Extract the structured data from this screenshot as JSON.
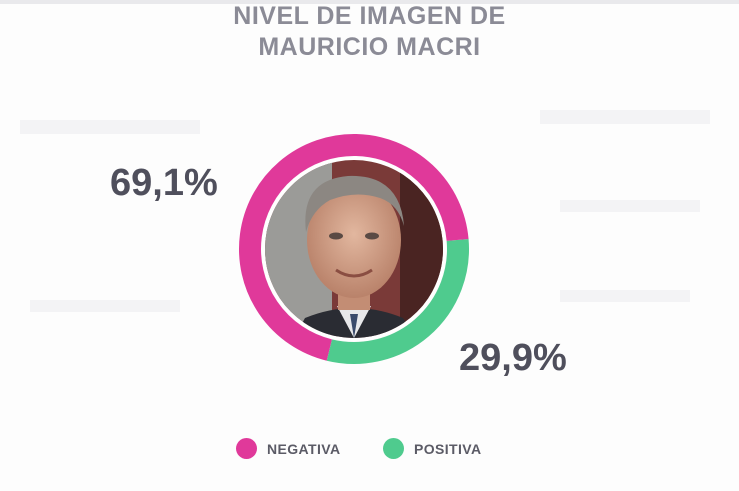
{
  "chart_data": {
    "type": "pie",
    "title_lines": [
      "NIVEL DE IMAGEN DE",
      "MAURICIO MACRI"
    ],
    "series": [
      {
        "name": "NEGATIVA",
        "value": 69.1,
        "label": "69,1%",
        "color": "#e0399a"
      },
      {
        "name": "POSITIVA",
        "value": 29.9,
        "label": "29,9%",
        "color": "#4fcb8e"
      }
    ],
    "legend": "bottom"
  },
  "photo": {
    "icon": "portrait-photo"
  }
}
